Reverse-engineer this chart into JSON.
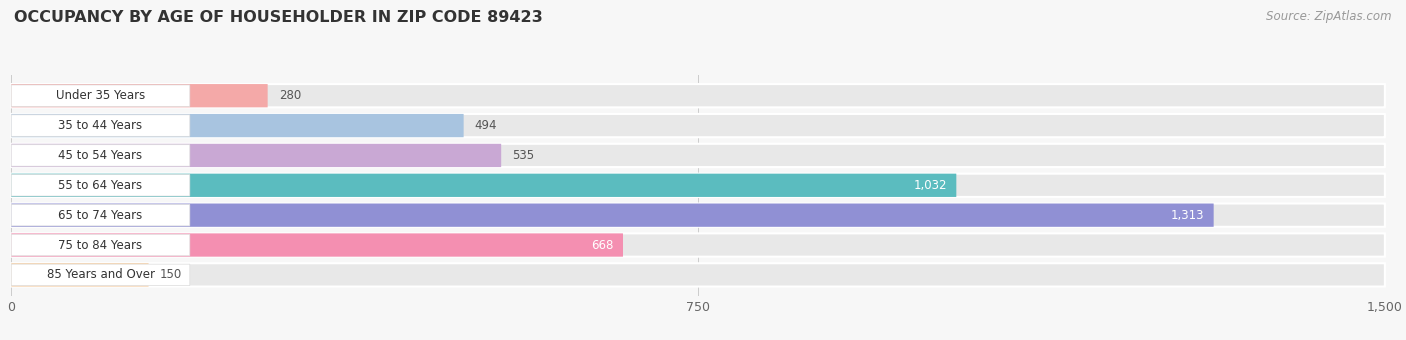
{
  "title": "OCCUPANCY BY AGE OF HOUSEHOLDER IN ZIP CODE 89423",
  "source": "Source: ZipAtlas.com",
  "categories": [
    "Under 35 Years",
    "35 to 44 Years",
    "45 to 54 Years",
    "55 to 64 Years",
    "65 to 74 Years",
    "75 to 84 Years",
    "85 Years and Over"
  ],
  "values": [
    280,
    494,
    535,
    1032,
    1313,
    668,
    150
  ],
  "bar_colors": [
    "#f4a9a8",
    "#a8c4e0",
    "#c9a8d4",
    "#5bbcbf",
    "#9090d4",
    "#f48fb1",
    "#f5c99a"
  ],
  "xlim": [
    0,
    1500
  ],
  "xticks": [
    0,
    750,
    1500
  ],
  "background_color": "#f7f7f7",
  "bar_bg_color": "#e8e8e8",
  "row_bg_color": "#f0f0f0",
  "title_fontsize": 11.5,
  "source_fontsize": 8.5,
  "label_fontsize": 8.5,
  "value_fontsize": 8.5,
  "value_threshold": 600
}
